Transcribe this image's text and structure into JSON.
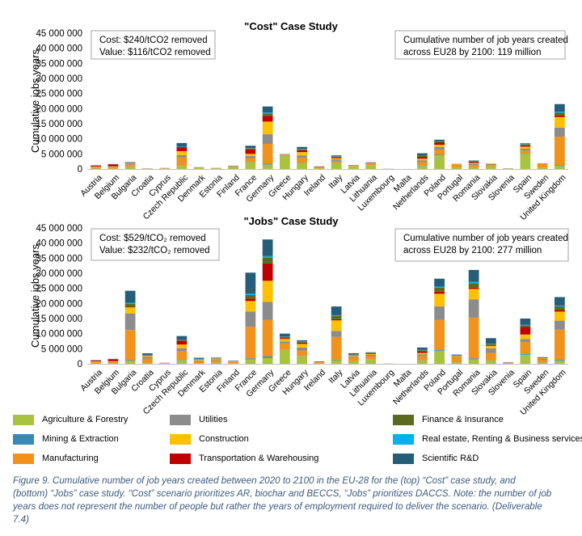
{
  "colors": {
    "Agriculture & Forestry": "#a9c23f",
    "Mining & Extraction": "#3a88b5",
    "Manufacturing": "#f0921b",
    "Utilities": "#8c8c8c",
    "Construction": "#ffc000",
    "Transportation & Warehousing": "#c00000",
    "Finance & Insurance": "#5b6b1e",
    "Real estate, Renting & Business services": "#00b0f0",
    "Scientific R&D": "#255e79"
  },
  "legend": [
    "Agriculture & Forestry",
    "Utilities",
    "Finance & Insurance",
    "Mining & Extraction",
    "Construction",
    "Real estate, Renting & Business services",
    "Manufacturing",
    "Transportation & Warehousing",
    "Scientific R&D"
  ],
  "caption_lines": [
    "Figure 9. Cumulative number of job years created between 2020 to 2100 in the EU-28 for the (top) “Cost” case study, and",
    "(bottom) “Jobs” case study. “Cost” scenario prioritizes AR, biochar and BECCS, “Jobs” prioritizes DACCS. Note: the number of job",
    "years does not represent the number of people but rather the years of employment required to deliver the scenario. (Deliverable",
    "7.4)"
  ],
  "chart_data": [
    {
      "type": "bar",
      "stacked": true,
      "title": "\"Cost\" Case Study",
      "ylabel": "Cumulative jobs years",
      "ylim": [
        0,
        45000000
      ],
      "yticks": [
        "0",
        "5 000 000",
        "10 000 000",
        "15 000 000",
        "20 000 000",
        "25 000 000",
        "30 000 000",
        "35 000 000",
        "40 000 000",
        "45 000 000"
      ],
      "grid": false,
      "annotations": [
        {
          "position": "top-left",
          "lines": [
            "Cost: $240/tCO2 removed",
            "Value: $116/tCO2 removed"
          ]
        },
        {
          "position": "top-right",
          "lines": [
            "Cumulative number of job years created",
            "across EU28 by 2100: 119 million"
          ]
        }
      ],
      "categories": [
        "Austria",
        "Belgium",
        "Bulgaria",
        "Croatia",
        "Cyprus",
        "Czech Republic",
        "Denmark",
        "Estonia",
        "Finland",
        "France",
        "Germany",
        "Greece",
        "Hungary",
        "Ireland",
        "Italy",
        "Latvia",
        "Lithuania",
        "Luxembourg",
        "Malta",
        "Netherlands",
        "Poland",
        "Portugal",
        "Romania",
        "Slovakia",
        "Slovenia",
        "Spain",
        "Sweden",
        "United Kingdom"
      ],
      "series": [
        {
          "name": "Agriculture & Forestry",
          "values": [
            100000,
            50000,
            800000,
            50000,
            50000,
            1200000,
            200000,
            200000,
            500000,
            2200000,
            1500000,
            4200000,
            2000000,
            150000,
            2000000,
            700000,
            1300000,
            20000,
            0,
            1000000,
            4500000,
            500000,
            500000,
            800000,
            100000,
            5000000,
            500000,
            1000000
          ]
        },
        {
          "name": "Mining & Extraction",
          "values": [
            20000,
            20000,
            50000,
            10000,
            10000,
            100000,
            20000,
            10000,
            20000,
            100000,
            300000,
            50000,
            100000,
            10000,
            100000,
            20000,
            20000,
            0,
            0,
            100000,
            200000,
            20000,
            50000,
            30000,
            10000,
            100000,
            20000,
            200000
          ]
        },
        {
          "name": "Manufacturing",
          "values": [
            400000,
            500000,
            600000,
            50000,
            100000,
            2500000,
            100000,
            50000,
            200000,
            1300000,
            6500000,
            200000,
            1600000,
            300000,
            600000,
            200000,
            300000,
            10000,
            0,
            1200000,
            1700000,
            600000,
            700000,
            300000,
            50000,
            1000000,
            600000,
            9500000
          ]
        },
        {
          "name": "Utilities",
          "values": [
            100000,
            100000,
            300000,
            20000,
            30000,
            800000,
            50000,
            30000,
            100000,
            700000,
            3200000,
            200000,
            800000,
            50000,
            500000,
            100000,
            200000,
            5000,
            0,
            600000,
            900000,
            200000,
            400000,
            200000,
            20000,
            600000,
            200000,
            3000000
          ]
        },
        {
          "name": "Construction",
          "values": [
            200000,
            200000,
            200000,
            30000,
            50000,
            1300000,
            80000,
            20000,
            100000,
            700000,
            4200000,
            150000,
            1100000,
            100000,
            400000,
            100000,
            100000,
            5000,
            0,
            500000,
            700000,
            200000,
            300000,
            100000,
            20000,
            700000,
            200000,
            3500000
          ]
        },
        {
          "name": "Transportation & Warehousing",
          "values": [
            300000,
            600000,
            100000,
            20000,
            50000,
            1200000,
            50000,
            20000,
            50000,
            1500000,
            1900000,
            50000,
            600000,
            150000,
            300000,
            50000,
            50000,
            5000,
            0,
            600000,
            700000,
            50000,
            300000,
            100000,
            10000,
            400000,
            100000,
            500000
          ]
        },
        {
          "name": "Finance & Insurance",
          "values": [
            50000,
            50000,
            100000,
            10000,
            10000,
            300000,
            20000,
            10000,
            50000,
            300000,
            800000,
            50000,
            300000,
            30000,
            200000,
            50000,
            100000,
            5000,
            0,
            300000,
            400000,
            50000,
            200000,
            80000,
            10000,
            300000,
            50000,
            1000000
          ]
        },
        {
          "name": "Real estate, Renting & Business services",
          "values": [
            20000,
            20000,
            50000,
            5000,
            5000,
            100000,
            10000,
            5000,
            20000,
            100000,
            300000,
            20000,
            100000,
            10000,
            100000,
            20000,
            30000,
            5000,
            0,
            100000,
            100000,
            20000,
            50000,
            20000,
            5000,
            100000,
            20000,
            300000
          ]
        },
        {
          "name": "Scientific R&D",
          "values": [
            50000,
            100000,
            100000,
            10000,
            20000,
            1100000,
            50000,
            20000,
            50000,
            800000,
            2000000,
            50000,
            700000,
            50000,
            300000,
            50000,
            100000,
            10000,
            0,
            800000,
            500000,
            50000,
            300000,
            100000,
            10000,
            300000,
            100000,
            2500000
          ]
        }
      ]
    },
    {
      "type": "bar",
      "stacked": true,
      "title": "\"Jobs\" Case Study",
      "ylabel": "Cumulative jobs years",
      "ylim": [
        0,
        45000000
      ],
      "yticks": [
        "0",
        "5 000 000",
        "10 000 000",
        "15 000 000",
        "20 000 000",
        "25 000 000",
        "30 000 000",
        "35 000 000",
        "40 000 000",
        "45 000 000"
      ],
      "grid": false,
      "annotations": [
        {
          "position": "top-left",
          "lines": [
            "Cost: $529/tCO₂ removed",
            "Value: $232/tCO₂ removed"
          ]
        },
        {
          "position": "top-right",
          "lines": [
            "Cumulative number of job years created",
            "across EU28 by 2100: 277 million"
          ]
        }
      ],
      "categories": [
        "Austria",
        "Belgium",
        "Bulgaria",
        "Croatia",
        "Cyprus",
        "Czech Republic",
        "Denmark",
        "Estonia",
        "Finland",
        "France",
        "Germany",
        "Greece",
        "Hungary",
        "Ireland",
        "Italy",
        "Latvia",
        "Lithuania",
        "Luxembourg",
        "Malta",
        "Netherlands",
        "Poland",
        "Portugal",
        "Romania",
        "Slovakia",
        "Slovenia",
        "Spain",
        "Sweden",
        "United Kingdom"
      ],
      "series": [
        {
          "name": "Agriculture & Forestry",
          "values": [
            100000,
            50000,
            1000000,
            200000,
            50000,
            1200000,
            200000,
            400000,
            200000,
            1500000,
            2000000,
            4500000,
            2500000,
            100000,
            1200000,
            800000,
            1500000,
            20000,
            0,
            1000000,
            4200000,
            500000,
            1500000,
            1000000,
            100000,
            3000000,
            500000,
            1000000
          ]
        },
        {
          "name": "Mining & Extraction",
          "values": [
            20000,
            20000,
            200000,
            30000,
            10000,
            100000,
            20000,
            20000,
            20000,
            300000,
            500000,
            100000,
            100000,
            10000,
            200000,
            50000,
            50000,
            0,
            0,
            100000,
            300000,
            20000,
            300000,
            100000,
            10000,
            200000,
            20000,
            300000
          ]
        },
        {
          "name": "Manufacturing",
          "values": [
            400000,
            500000,
            10000000,
            1500000,
            100000,
            3000000,
            600000,
            800000,
            400000,
            10500000,
            12000000,
            2200000,
            1800000,
            300000,
            7500000,
            1200000,
            1000000,
            10000,
            0,
            1400000,
            10000000,
            1500000,
            13500000,
            2500000,
            200000,
            4000000,
            800000,
            10000000
          ]
        },
        {
          "name": "Utilities",
          "values": [
            100000,
            100000,
            5500000,
            600000,
            30000,
            800000,
            300000,
            300000,
            100000,
            5000000,
            6000000,
            600000,
            1000000,
            50000,
            2000000,
            400000,
            400000,
            5000,
            0,
            600000,
            4500000,
            300000,
            6000000,
            1500000,
            50000,
            1000000,
            300000,
            3000000
          ]
        },
        {
          "name": "Construction",
          "values": [
            200000,
            200000,
            2000000,
            300000,
            50000,
            1300000,
            300000,
            200000,
            100000,
            3500000,
            7000000,
            800000,
            1200000,
            100000,
            3500000,
            300000,
            300000,
            5000,
            0,
            500000,
            4200000,
            300000,
            3500000,
            800000,
            50000,
            1500000,
            200000,
            3000000
          ]
        },
        {
          "name": "Transportation & Warehousing",
          "values": [
            300000,
            600000,
            200000,
            100000,
            50000,
            1200000,
            100000,
            50000,
            50000,
            800000,
            5800000,
            300000,
            400000,
            150000,
            400000,
            100000,
            100000,
            5000,
            0,
            600000,
            700000,
            100000,
            400000,
            200000,
            20000,
            2500000,
            100000,
            500000
          ]
        },
        {
          "name": "Finance & Insurance",
          "values": [
            50000,
            50000,
            1000000,
            200000,
            10000,
            300000,
            100000,
            50000,
            50000,
            1200000,
            1800000,
            400000,
            300000,
            30000,
            1000000,
            200000,
            200000,
            5000,
            0,
            300000,
            1300000,
            100000,
            1500000,
            400000,
            20000,
            500000,
            50000,
            1200000
          ]
        },
        {
          "name": "Real estate, Renting & Business services",
          "values": [
            20000,
            20000,
            300000,
            50000,
            5000,
            100000,
            30000,
            20000,
            20000,
            400000,
            600000,
            100000,
            100000,
            10000,
            300000,
            50000,
            50000,
            5000,
            0,
            100000,
            400000,
            30000,
            500000,
            100000,
            10000,
            200000,
            20000,
            300000
          ]
        },
        {
          "name": "Scientific R&D",
          "values": [
            50000,
            100000,
            4000000,
            500000,
            20000,
            1200000,
            350000,
            200000,
            100000,
            7000000,
            5500000,
            1000000,
            400000,
            50000,
            2900000,
            400000,
            200000,
            10000,
            0,
            800000,
            2600000,
            200000,
            3900000,
            1900000,
            100000,
            2100000,
            200000,
            2800000
          ]
        }
      ]
    }
  ]
}
